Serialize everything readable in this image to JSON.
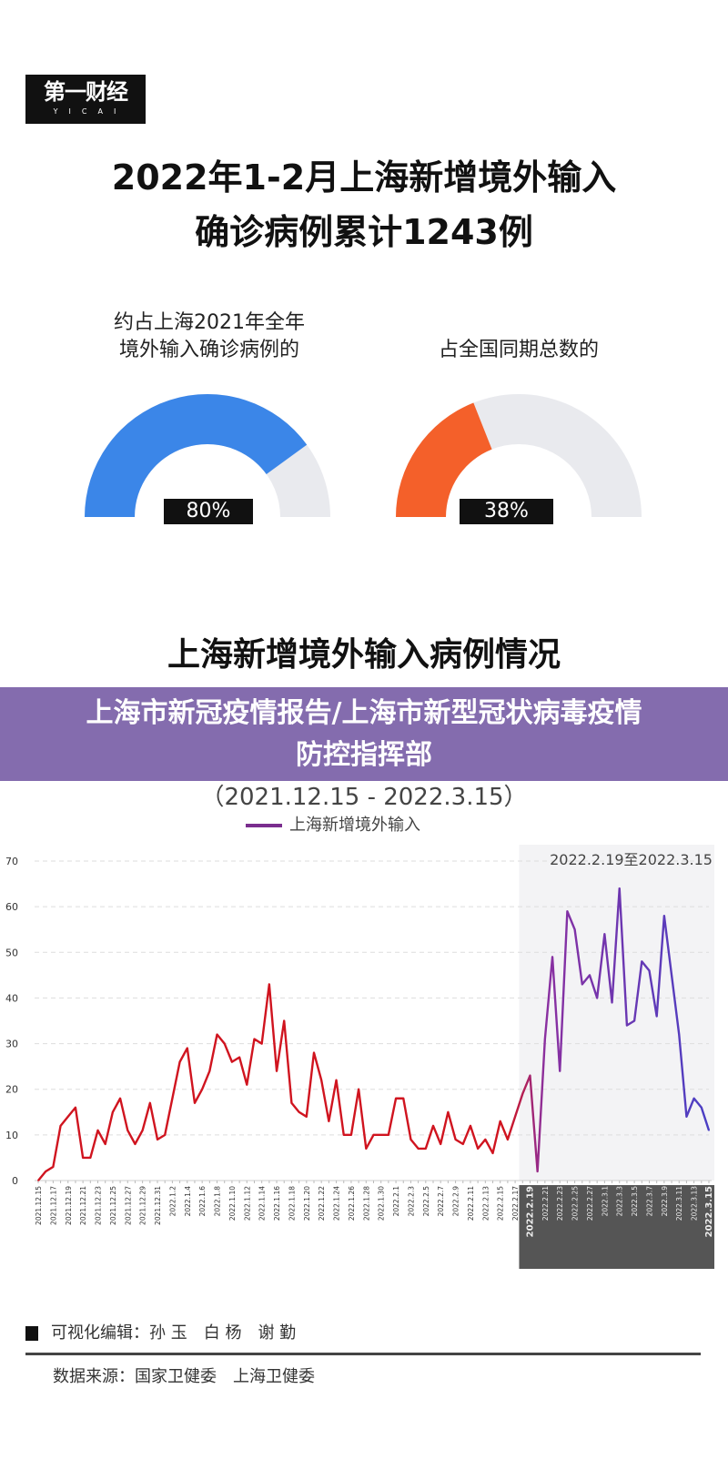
{
  "logo": {
    "text_cn": "第一财经",
    "text_en": "YICAI"
  },
  "title": {
    "line1": "2022年1-2月上海新增境外输入",
    "line2": "确诊病例累计1243例"
  },
  "gauges": [
    {
      "label_line1": "约占上海2021年全年",
      "label_line2": "境外输入确诊病例的",
      "value": 80,
      "display": "80%",
      "color": "#3b86e8"
    },
    {
      "label_line1": "",
      "label_line2": "占全国同期总数的",
      "value": 38,
      "display": "38%",
      "color": "#f4602a"
    }
  ],
  "section_title": "上海新增境外输入病例情况",
  "subtitle": "（2021.12.15 - 2022.3.15）",
  "banner": {
    "line1": "上海市新冠疫情报告/上海市新型冠状病毒疫情",
    "line2": "防控指挥部"
  },
  "footer": {
    "editors": "可视化编辑：孙 玉　白 杨　谢 勤",
    "source": "数据来源：国家卫健委　上海卫健委"
  },
  "chart_data": {
    "type": "line",
    "title": "上海新增境外输入病例情况",
    "subtitle": "（2021.12.15 - 2022.3.15）",
    "xlabel": "",
    "ylabel": "",
    "ylim": [
      0,
      70
    ],
    "yticks": [
      0,
      10,
      20,
      30,
      40,
      50,
      60,
      70
    ],
    "grid": true,
    "legend": "top-left",
    "highlight": {
      "label": "2022.2.19至2022.3.15",
      "from": "2022.2.19",
      "to": "2022.3.15"
    },
    "series": [
      {
        "name": "上海新增境外输入",
        "start": "2021.12.15",
        "values": [
          0,
          2,
          3,
          12,
          14,
          16,
          5,
          5,
          11,
          8,
          15,
          18,
          11,
          8,
          11,
          17,
          9,
          10,
          18,
          26,
          29,
          17,
          20,
          24,
          32,
          30,
          26,
          27,
          21,
          31,
          30,
          43,
          24,
          35,
          17,
          15,
          14,
          28,
          22,
          13,
          22,
          10,
          10,
          20,
          7,
          10,
          10,
          10,
          18,
          18,
          9,
          7,
          7,
          12,
          8,
          15,
          9,
          8,
          12,
          7,
          9,
          6,
          13,
          9,
          14,
          19,
          23,
          2,
          31,
          49,
          24,
          59,
          55,
          43,
          45,
          40,
          54,
          39,
          64,
          34,
          35,
          48,
          46,
          36,
          58,
          45,
          32,
          14,
          18,
          16,
          11
        ]
      }
    ],
    "colors": {
      "early": "#d0141f",
      "late_start": "#8a2fa0",
      "late_end": "#4a3fc4"
    }
  }
}
